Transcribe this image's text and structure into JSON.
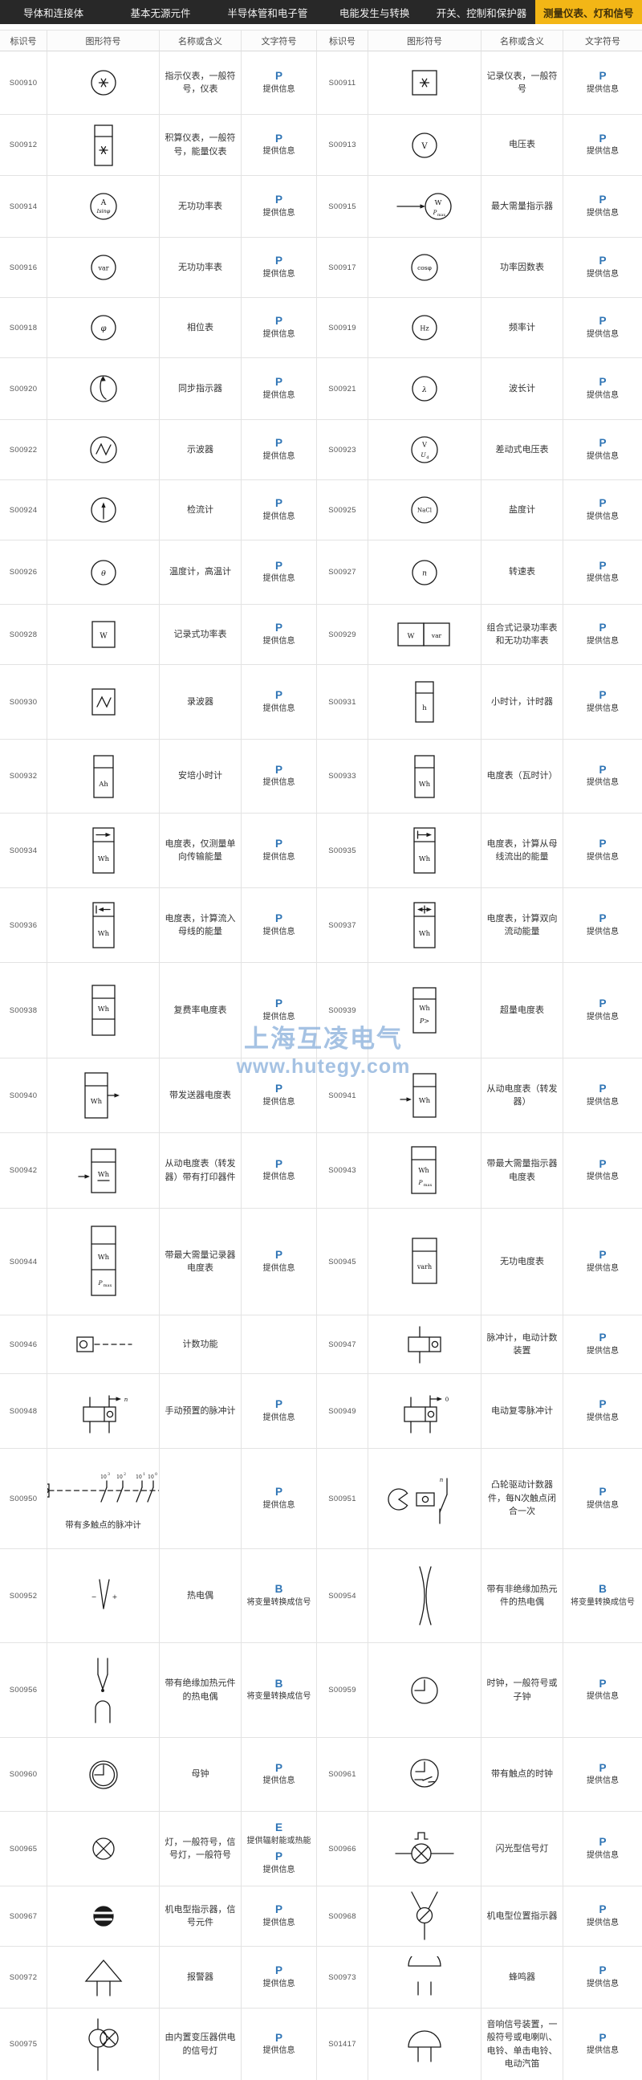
{
  "nav": {
    "tabs": [
      {
        "label": "导体和连接体",
        "active": false
      },
      {
        "label": "基本无源元件",
        "active": false
      },
      {
        "label": "半导体管和电子管",
        "active": false
      },
      {
        "label": "电能发生与转换",
        "active": false
      },
      {
        "label": "开关、控制和保护器",
        "active": false
      },
      {
        "label": "测量仪表、灯和信号",
        "active": true
      }
    ]
  },
  "table": {
    "headers": [
      "标识号",
      "图形符号",
      "名称或含义",
      "文字符号"
    ]
  },
  "watermark": {
    "line1": "上海互凌电气",
    "line2": "www.hutegy.com"
  },
  "colors": {
    "nav_bg": "#282828",
    "accent": "#F3B616",
    "active_tab_text": "#40300a",
    "letter_blue": "#2E74B5",
    "watermark_blue": "#8FB3DC"
  },
  "rows": [
    {
      "left": {
        "id": "S00910",
        "symbol": "circle-asterisk",
        "name": "指示仪表，一般符号，仪表",
        "codes": [
          {
            "letter": "P",
            "desc": "提供信息"
          }
        ]
      },
      "right": {
        "id": "S00911",
        "symbol": "square-asterisk",
        "name": "记录仪表，一般符号",
        "codes": [
          {
            "letter": "P",
            "desc": "提供信息"
          }
        ]
      }
    },
    {
      "left": {
        "id": "S00912",
        "symbol": "rect2-asterisk",
        "name": "积算仪表，一般符号，能量仪表",
        "codes": [
          {
            "letter": "P",
            "desc": "提供信息"
          }
        ]
      },
      "right": {
        "id": "S00913",
        "symbol": "circle-V",
        "name": "电压表",
        "codes": [
          {
            "letter": "P",
            "desc": "提供信息"
          }
        ]
      }
    },
    {
      "left": {
        "id": "S00914",
        "symbol": "circle-A-Isin",
        "name": "无功功率表",
        "codes": [
          {
            "letter": "P",
            "desc": "提供信息"
          }
        ]
      },
      "right": {
        "id": "S00915",
        "symbol": "arrow-circle-W-Pmax",
        "name": "最大需量指示器",
        "codes": [
          {
            "letter": "P",
            "desc": "提供信息"
          }
        ]
      }
    },
    {
      "left": {
        "id": "S00916",
        "symbol": "circle-var",
        "name": "无功功率表",
        "codes": [
          {
            "letter": "P",
            "desc": "提供信息"
          }
        ]
      },
      "right": {
        "id": "S00917",
        "symbol": "circle-cosphi",
        "name": "功率因数表",
        "codes": [
          {
            "letter": "P",
            "desc": "提供信息"
          }
        ]
      }
    },
    {
      "left": {
        "id": "S00918",
        "symbol": "circle-phi",
        "name": "相位表",
        "codes": [
          {
            "letter": "P",
            "desc": "提供信息"
          }
        ]
      },
      "right": {
        "id": "S00919",
        "symbol": "circle-Hz",
        "name": "频率计",
        "codes": [
          {
            "letter": "P",
            "desc": "提供信息"
          }
        ]
      }
    },
    {
      "left": {
        "id": "S00920",
        "symbol": "circle-sync",
        "name": "同步指示器",
        "codes": [
          {
            "letter": "P",
            "desc": "提供信息"
          }
        ]
      },
      "right": {
        "id": "S00921",
        "symbol": "circle-lambda",
        "name": "波长计",
        "codes": [
          {
            "letter": "P",
            "desc": "提供信息"
          }
        ]
      }
    },
    {
      "left": {
        "id": "S00922",
        "symbol": "circle-zigzag",
        "name": "示波器",
        "codes": [
          {
            "letter": "P",
            "desc": "提供信息"
          }
        ]
      },
      "right": {
        "id": "S00923",
        "symbol": "circle-V-Ud",
        "name": "差动式电压表",
        "codes": [
          {
            "letter": "P",
            "desc": "提供信息"
          }
        ]
      }
    },
    {
      "left": {
        "id": "S00924",
        "symbol": "circle-arrow-up",
        "name": "检流计",
        "codes": [
          {
            "letter": "P",
            "desc": "提供信息"
          }
        ]
      },
      "right": {
        "id": "S00925",
        "symbol": "circle-NaCl",
        "name": "盐度计",
        "codes": [
          {
            "letter": "P",
            "desc": "提供信息"
          }
        ]
      }
    },
    {
      "left": {
        "id": "S00926",
        "symbol": "circle-theta",
        "name": "温度计，高温计",
        "codes": [
          {
            "letter": "P",
            "desc": "提供信息"
          }
        ]
      },
      "right": {
        "id": "S00927",
        "symbol": "circle-n",
        "name": "转速表",
        "codes": [
          {
            "letter": "P",
            "desc": "提供信息"
          }
        ]
      }
    },
    {
      "left": {
        "id": "S00928",
        "symbol": "square-W",
        "name": "记录式功率表",
        "codes": [
          {
            "letter": "P",
            "desc": "提供信息"
          }
        ]
      },
      "right": {
        "id": "S00929",
        "symbol": "square-W-var",
        "name": "组合式记录功率表和无功功率表",
        "codes": [
          {
            "letter": "P",
            "desc": "提供信息"
          }
        ]
      }
    },
    {
      "left": {
        "id": "S00930",
        "symbol": "square-zigzag",
        "name": "录波器",
        "codes": [
          {
            "letter": "P",
            "desc": "提供信息"
          }
        ]
      },
      "right": {
        "id": "S00931",
        "symbol": "rect2-h",
        "name": "小时计，计时器",
        "codes": [
          {
            "letter": "P",
            "desc": "提供信息"
          }
        ]
      }
    },
    {
      "left": {
        "id": "S00932",
        "symbol": "rect2-Ah",
        "name": "安培小时计",
        "codes": [
          {
            "letter": "P",
            "desc": "提供信息"
          }
        ]
      },
      "right": {
        "id": "S00933",
        "symbol": "rect2-Wh",
        "name": "电度表（瓦时计）",
        "codes": [
          {
            "letter": "P",
            "desc": "提供信息"
          }
        ]
      }
    },
    {
      "left": {
        "id": "S00934",
        "symbol": "rect2-arrowR-Wh",
        "name": "电度表，仅测量单向传输能量",
        "codes": [
          {
            "letter": "P",
            "desc": "提供信息"
          }
        ]
      },
      "right": {
        "id": "S00935",
        "symbol": "rect2-arrowRbar-Wh",
        "name": "电度表，计算从母线流出的能量",
        "codes": [
          {
            "letter": "P",
            "desc": "提供信息"
          }
        ]
      }
    },
    {
      "left": {
        "id": "S00936",
        "symbol": "rect2-arrowL-Wh",
        "name": "电度表，计算流入母线的能量",
        "codes": [
          {
            "letter": "P",
            "desc": "提供信息"
          }
        ]
      },
      "right": {
        "id": "S00937",
        "symbol": "rect2-arrowLR-Wh",
        "name": "电度表，计算双向流动能量",
        "codes": [
          {
            "letter": "P",
            "desc": "提供信息"
          }
        ]
      }
    },
    {
      "left": {
        "id": "S00938",
        "symbol": "rect3-Wh",
        "name": "复费率电度表",
        "codes": [
          {
            "letter": "P",
            "desc": "提供信息"
          }
        ]
      },
      "right": {
        "id": "S00939",
        "symbol": "rect2-Wh-Pgt",
        "name": "超量电度表",
        "codes": [
          {
            "letter": "P",
            "desc": "提供信息"
          }
        ]
      }
    },
    {
      "left": {
        "id": "S00940",
        "symbol": "rect2-Wh-arrow-out",
        "name": "带发送器电度表",
        "codes": [
          {
            "letter": "P",
            "desc": "提供信息"
          }
        ]
      },
      "right": {
        "id": "S00941",
        "symbol": "arrow-rect2-Wh",
        "name": "从动电度表（转发器）",
        "codes": [
          {
            "letter": "P",
            "desc": "提供信息"
          }
        ]
      }
    },
    {
      "left": {
        "id": "S00942",
        "symbol": "arrow-rect2-Wh-print",
        "name": "从动电度表（转发器）带有打印器件",
        "codes": [
          {
            "letter": "P",
            "desc": "提供信息"
          }
        ]
      },
      "right": {
        "id": "S00943",
        "symbol": "rect2-Wh-Pmax",
        "name": "带最大需量指示器电度表",
        "codes": [
          {
            "letter": "P",
            "desc": "提供信息"
          }
        ]
      }
    },
    {
      "left": {
        "id": "S00944",
        "symbol": "rect3-Wh-Pmax",
        "name": "带最大需量记录器电度表",
        "codes": [
          {
            "letter": "P",
            "desc": "提供信息"
          }
        ]
      },
      "right": {
        "id": "S00945",
        "symbol": "rect2-varh",
        "name": "无功电度表",
        "codes": [
          {
            "letter": "P",
            "desc": "提供信息"
          }
        ]
      }
    },
    {
      "left": {
        "id": "S00946",
        "symbol": "count-box-dash",
        "name": "计数功能",
        "codes": []
      },
      "right": {
        "id": "S00947",
        "symbol": "pulse-counter",
        "name": "脉冲计，电动计数装置",
        "codes": [
          {
            "letter": "P",
            "desc": "提供信息"
          }
        ]
      }
    },
    {
      "left": {
        "id": "S00948",
        "symbol": "pulse-counter-preset",
        "name": "手动预置的脉冲计",
        "codes": [
          {
            "letter": "P",
            "desc": "提供信息"
          }
        ]
      },
      "right": {
        "id": "S00949",
        "symbol": "pulse-counter-reset",
        "name": "电动复零脉冲计",
        "codes": [
          {
            "letter": "P",
            "desc": "提供信息"
          }
        ]
      }
    },
    {
      "left": {
        "id": "S00950",
        "symbol": "multi-contact-counter",
        "name": "",
        "caption": "带有多触点的脉冲计",
        "codes": [
          {
            "letter": "P",
            "desc": "提供信息"
          }
        ]
      },
      "right": {
        "id": "S00951",
        "symbol": "cam-counter",
        "name": "凸轮驱动计数器件，每N次触点闭合一次",
        "codes": [
          {
            "letter": "P",
            "desc": "提供信息"
          }
        ]
      }
    },
    {
      "left": {
        "id": "S00952",
        "symbol": "thermocouple",
        "name": "热电偶",
        "codes": [
          {
            "letter": "B",
            "desc": "将变量转换成信号"
          }
        ]
      },
      "right": {
        "id": "S00954",
        "symbol": "thermocouple-bare",
        "name": "带有非绝缘加热元件的热电偶",
        "codes": [
          {
            "letter": "B",
            "desc": "将变量转换成信号"
          }
        ]
      }
    },
    {
      "left": {
        "id": "S00956",
        "symbol": "thermocouple-insulated",
        "name": "带有绝缘加热元件的热电偶",
        "codes": [
          {
            "letter": "B",
            "desc": "将变量转换成信号"
          }
        ]
      },
      "right": {
        "id": "S00959",
        "symbol": "clock",
        "name": "时钟，一般符号或子钟",
        "codes": [
          {
            "letter": "P",
            "desc": "提供信息"
          }
        ]
      }
    },
    {
      "left": {
        "id": "S00960",
        "symbol": "master-clock",
        "name": "母钟",
        "codes": [
          {
            "letter": "P",
            "desc": "提供信息"
          }
        ]
      },
      "right": {
        "id": "S00961",
        "symbol": "clock-contact",
        "name": "带有触点的时钟",
        "codes": [
          {
            "letter": "P",
            "desc": "提供信息"
          }
        ]
      }
    },
    {
      "left": {
        "id": "S00965",
        "symbol": "lamp",
        "name": "灯，一般符号，信号灯，一般符号",
        "codes": [
          {
            "letter": "E",
            "desc": "提供辐射能或热能"
          },
          {
            "letter": "P",
            "desc": "提供信息"
          }
        ]
      },
      "right": {
        "id": "S00966",
        "symbol": "flashing-lamp",
        "name": "闪光型信号灯",
        "codes": [
          {
            "letter": "P",
            "desc": "提供信息"
          }
        ]
      }
    },
    {
      "left": {
        "id": "S00967",
        "symbol": "indicator-striped",
        "name": "机电型指示器，信号元件",
        "codes": [
          {
            "letter": "P",
            "desc": "提供信息"
          }
        ]
      },
      "right": {
        "id": "S00968",
        "symbol": "position-indicator",
        "name": "机电型位置指示器",
        "codes": [
          {
            "letter": "P",
            "desc": "提供信息"
          }
        ]
      }
    },
    {
      "left": {
        "id": "S00972",
        "symbol": "alarm-horn",
        "name": "报警器",
        "codes": [
          {
            "letter": "P",
            "desc": "提供信息"
          }
        ]
      },
      "right": {
        "id": "S00973",
        "symbol": "buzzer",
        "name": "蜂鸣器",
        "codes": [
          {
            "letter": "P",
            "desc": "提供信息"
          }
        ]
      }
    },
    {
      "left": {
        "id": "S00975",
        "symbol": "lamp-transformer",
        "name": "由内置变压器供电的信号灯",
        "codes": [
          {
            "letter": "P",
            "desc": "提供信息"
          }
        ]
      },
      "right": {
        "id": "S01417",
        "symbol": "sounder",
        "name": "音响信号装置，一般符号或电喇叭、电铃、单击电铃、电动汽笛",
        "codes": [
          {
            "letter": "P",
            "desc": "提供信息"
          }
        ]
      }
    }
  ]
}
